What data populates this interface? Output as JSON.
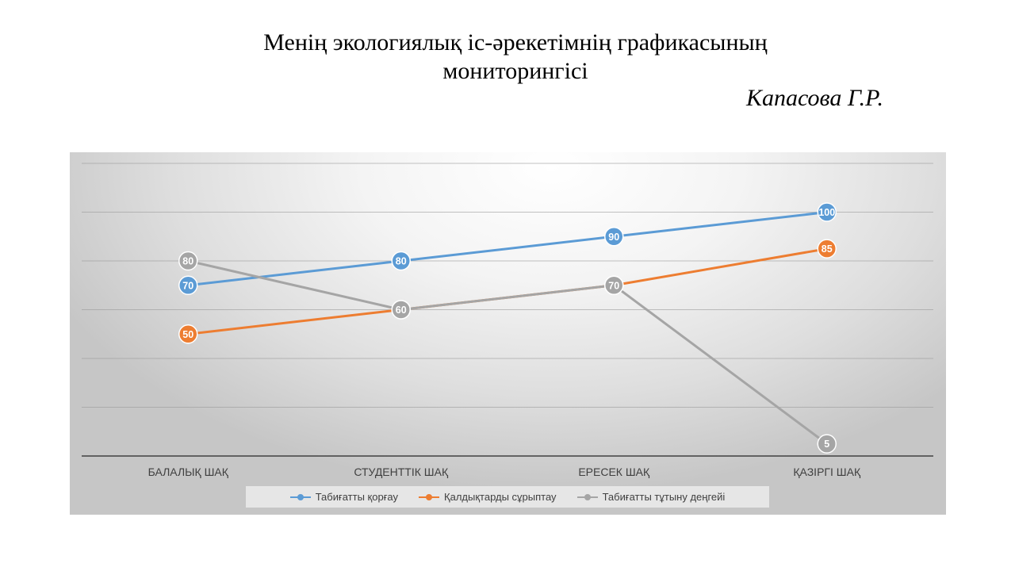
{
  "page": {
    "title": "Менің экологиялық іс-әрекетімнің графикасының мониторингісі",
    "author": "Капасова Г.Р."
  },
  "chart_data": {
    "type": "line",
    "categories": [
      "БАЛАЛЫҚ ШАҚ",
      "СТУДЕНТТІК ШАҚ",
      "ЕРЕСЕК ШАҚ",
      "ҚАЗІРГІ ШАҚ"
    ],
    "ylim": [
      0,
      120
    ],
    "grid": true,
    "legend_position": "bottom",
    "series": [
      {
        "name": "Табиғатты қорғау",
        "values": [
          70,
          80,
          90,
          100
        ],
        "color": "#5b9bd5"
      },
      {
        "name": "Қалдықтарды сұрыптау",
        "values": [
          50,
          60,
          70,
          85
        ],
        "color": "#ed7d31"
      },
      {
        "name": "Табиғатты тұтыну деңгейі",
        "values": [
          80,
          60,
          70,
          5
        ],
        "color": "#a5a5a5"
      }
    ]
  }
}
